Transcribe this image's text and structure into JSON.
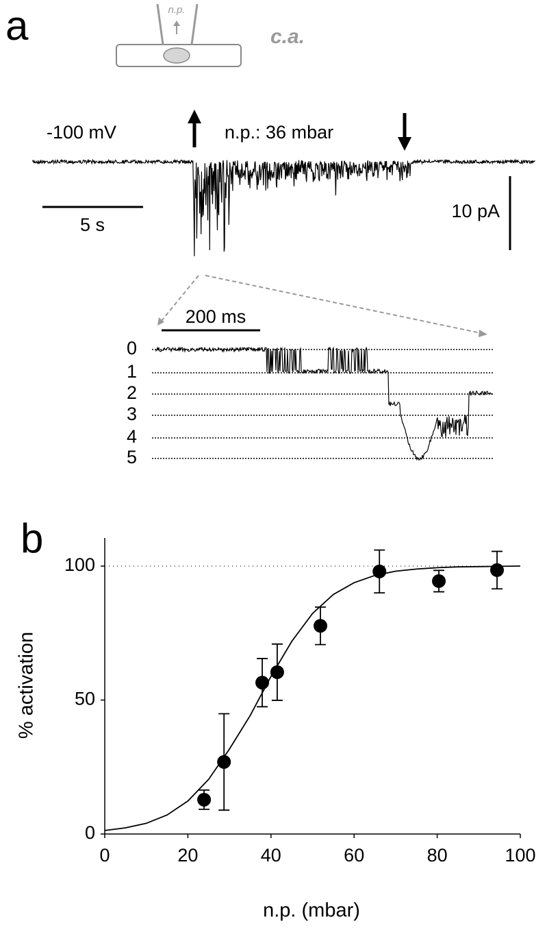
{
  "panel_a": {
    "panel_label": "a",
    "pipette_label": "n.p.",
    "config_label": "c.a.",
    "holding": "-100 mV",
    "pressure": "n.p.: 36 mbar",
    "time_scale": "5 s",
    "current_scale": "10 pA",
    "inset_time_scale": "200 ms",
    "inset_levels": [
      0,
      1,
      2,
      3,
      4,
      5
    ]
  },
  "chart_data": {
    "type": "scatter",
    "panel_label": "b",
    "x_label": "n.p. (mbar)",
    "y_label": "% activation",
    "x": [
      23.9,
      28.7,
      37.9,
      41.5,
      51.9,
      66.1,
      80.4,
      94.4
    ],
    "values": [
      12.8,
      26.9,
      56.5,
      60.4,
      77.7,
      98,
      94.4,
      98.5
    ],
    "errors": [
      3.6,
      18,
      9,
      10.5,
      7,
      8,
      4,
      7
    ],
    "fit": {
      "x": [
        0,
        5,
        10,
        15,
        20,
        25,
        30,
        35,
        40,
        45,
        50,
        55,
        60,
        65,
        70,
        75,
        80,
        85,
        90,
        95,
        100
      ],
      "values": [
        1.3,
        2.3,
        4,
        7.1,
        12.3,
        20.4,
        31.7,
        44.2,
        58.8,
        71.9,
        82.3,
        89.4,
        93.8,
        96.5,
        98.1,
        98.9,
        99.4,
        99.7,
        99.8,
        99.9,
        100
      ]
    },
    "reference_line": 100,
    "xlim": [
      0,
      100
    ],
    "ylim": [
      0,
      110.5
    ],
    "xticks": [
      0,
      20,
      40,
      60,
      80,
      100
    ],
    "yticks": [
      0,
      50,
      100
    ],
    "color": "#000000"
  }
}
